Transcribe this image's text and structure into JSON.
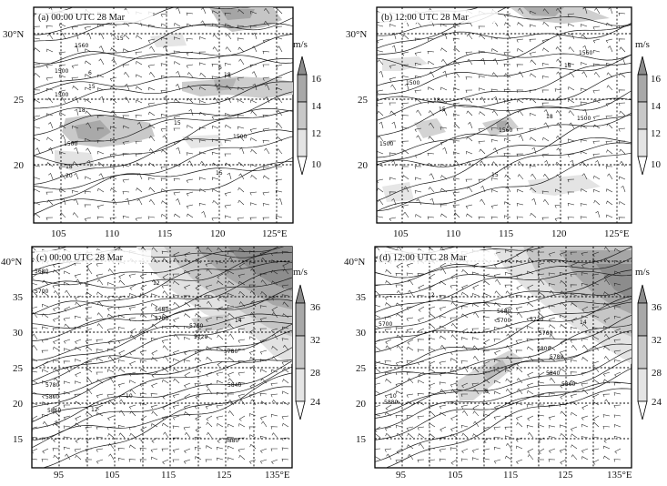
{
  "panels": [
    {
      "id": "a",
      "title": "(a) 00:00 UTC 28 Mar",
      "lat_labels": [
        "30°N",
        "25",
        "20"
      ],
      "lon_labels": [
        "105",
        "110",
        "115",
        "120",
        "125°E"
      ],
      "contour_labels": [
        "1560",
        "1500",
        "6",
        "15",
        "1500",
        "6",
        "18",
        "15",
        "1500",
        "20",
        "18",
        "15",
        "1500",
        "18",
        "15"
      ]
    },
    {
      "id": "b",
      "title": "(b) 12:00 UTC 28 Mar",
      "lat_labels": [
        "30°N",
        "25",
        "20"
      ],
      "lon_labels": [
        "105",
        "110",
        "115",
        "120",
        "125°E"
      ],
      "contour_labels": [
        "1500",
        "18",
        "15",
        "1500",
        "1560",
        "1500",
        "18",
        "15",
        "18",
        "1560"
      ]
    },
    {
      "id": "c",
      "title": "(c) 00:00 UTC 28 Mar",
      "lat_labels": [
        "40°N",
        "35",
        "30",
        "25",
        "20",
        "15"
      ],
      "lon_labels": [
        "95",
        "105",
        "115",
        "125",
        "135°E"
      ],
      "contour_labels": [
        "5680",
        "5700",
        "5680",
        "5700",
        "5760",
        "5780",
        "5780",
        "5720",
        "5800",
        "5840",
        "5880",
        "5860",
        "10",
        "14",
        "12",
        "8",
        "12"
      ]
    },
    {
      "id": "d",
      "title": "(d) 12:00 UTC 28 Mar",
      "lat_labels": [
        "40°N",
        "35",
        "30",
        "25",
        "20",
        "15"
      ],
      "lon_labels": [
        "95",
        "105",
        "115",
        "125",
        "135°E"
      ],
      "contour_labels": [
        "5700",
        "5680",
        "5700",
        "5720",
        "5760",
        "5780",
        "5800",
        "5840",
        "5880",
        "5860",
        "10",
        "12",
        "8",
        "14"
      ]
    }
  ],
  "colorbars": [
    {
      "unit": "m/s",
      "ticks": [
        "16",
        "14",
        "12",
        "10"
      ]
    },
    {
      "unit": "m/s",
      "ticks": [
        "16",
        "14",
        "12",
        "10"
      ]
    },
    {
      "unit": "m/s",
      "ticks": [
        "36",
        "32",
        "28",
        "24"
      ]
    },
    {
      "unit": "m/s",
      "ticks": [
        "36",
        "32",
        "28",
        "24"
      ]
    }
  ],
  "colors": {
    "shade_light": "#e4e4e4",
    "shade_mid": "#c8c8c8",
    "shade_dark": "#a8a8a8",
    "shade_darkest": "#8c8c8c",
    "line": "#1a1a1a"
  }
}
